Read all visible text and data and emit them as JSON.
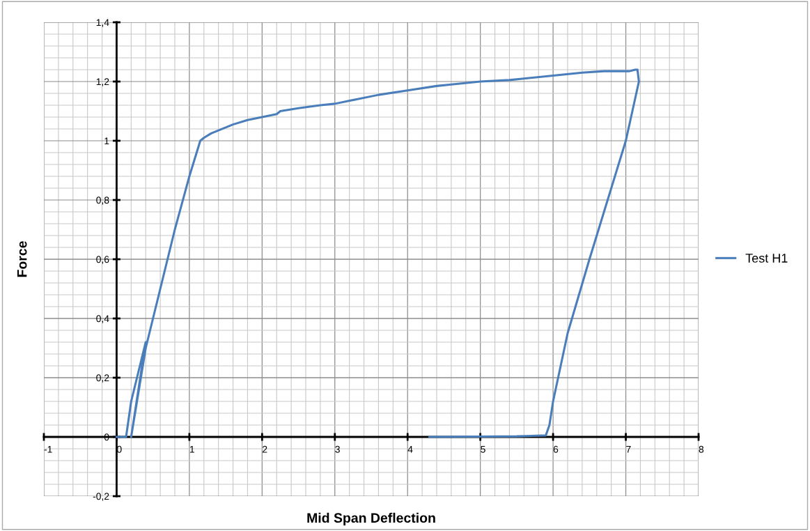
{
  "chart_data": {
    "type": "line",
    "xlabel": "Mid Span Deflection",
    "ylabel": "Force",
    "xlim": [
      -1,
      8
    ],
    "ylim": [
      -0.2,
      1.4
    ],
    "xticks": [
      -1,
      0,
      1,
      2,
      3,
      4,
      5,
      6,
      7,
      8
    ],
    "yticks": [
      {
        "value": -0.2,
        "label": "-0,2"
      },
      0,
      {
        "value": 0.2,
        "label": "0,2"
      },
      {
        "value": 0.4,
        "label": "0,4"
      },
      {
        "value": 0.6,
        "label": "0,6"
      },
      {
        "value": 0.8,
        "label": "0,8"
      },
      1,
      {
        "value": 1.2,
        "label": "1,2"
      },
      {
        "value": 1.4,
        "label": "1,4"
      }
    ],
    "grid": true,
    "legend": "right",
    "marker": "none",
    "line_style": "solid",
    "series": [
      {
        "name": "Test H1",
        "color": "#4a7ebb",
        "x": [
          0,
          0.13,
          0.2,
          0.4,
          0.2,
          0.4,
          0.6,
          0.8,
          1.0,
          1.15,
          1.2,
          1.3,
          1.4,
          1.6,
          1.8,
          2.0,
          2.2,
          2.25,
          2.5,
          2.8,
          3.0,
          3.3,
          3.6,
          4.0,
          4.4,
          4.6,
          5.0,
          5.4,
          5.6,
          6.0,
          6.4,
          6.7,
          6.9,
          7.05,
          7.13,
          7.16,
          7.18,
          7.0,
          6.5,
          6.2,
          6.0,
          5.95,
          5.9,
          5.5,
          5.0,
          4.3
        ],
        "values": [
          0,
          0,
          0.12,
          0.32,
          0,
          0.3,
          0.5,
          0.7,
          0.88,
          1.0,
          1.01,
          1.025,
          1.035,
          1.055,
          1.07,
          1.08,
          1.09,
          1.1,
          1.11,
          1.12,
          1.125,
          1.14,
          1.155,
          1.17,
          1.185,
          1.19,
          1.2,
          1.205,
          1.21,
          1.22,
          1.23,
          1.235,
          1.235,
          1.235,
          1.24,
          1.24,
          1.2,
          1.0,
          0.6,
          0.35,
          0.12,
          0.04,
          0.005,
          0.002,
          0.001,
          0
        ]
      }
    ]
  }
}
